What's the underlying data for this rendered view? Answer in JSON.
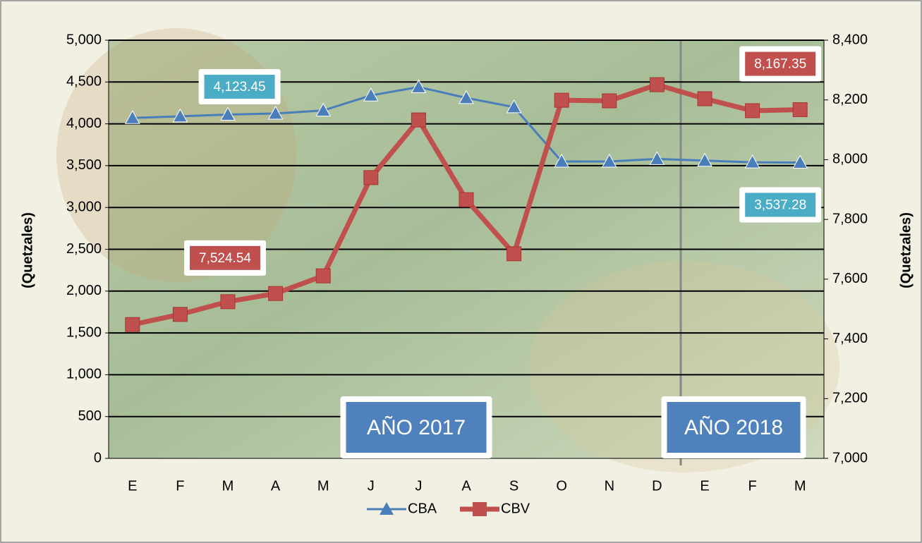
{
  "chart_data": {
    "type": "line",
    "y_label": "(Quetzales)",
    "y2_label": "(Quetzales)",
    "categories": [
      "E",
      "F",
      "M",
      "A",
      "M",
      "J",
      "J",
      "A",
      "S",
      "O",
      "N",
      "D",
      "E",
      "F",
      "M"
    ],
    "series": [
      {
        "name": "CBA",
        "color": "#4a7ebb",
        "marker": "triangle",
        "values": [
          4070,
          4090,
          4110,
          4123.45,
          4160,
          4340,
          4440,
          4310,
          4200,
          3550,
          3550,
          3580,
          3560,
          3540,
          3537.28
        ],
        "value_labels": [
          null,
          null,
          null,
          "4,123.45",
          null,
          null,
          null,
          null,
          null,
          null,
          null,
          null,
          null,
          null,
          "3,537.28"
        ]
      },
      {
        "name": "CBV",
        "color": "#c0504d",
        "marker": "square",
        "axis": "y2",
        "values": [
          7448,
          7482,
          7524.54,
          7552,
          7611,
          7940,
          8133,
          7866,
          7685,
          8199,
          8197,
          8251,
          8204,
          8164,
          8167.35
        ],
        "value_labels": [
          null,
          null,
          "7,524.54",
          null,
          null,
          null,
          null,
          null,
          null,
          null,
          null,
          null,
          null,
          null,
          "8,167.35"
        ]
      }
    ],
    "annotations": [
      "AÑO 2017",
      "AÑO 2018"
    ],
    "ylim": [
      0,
      5000
    ],
    "yticks": [
      0,
      500,
      {
        "value": 1000,
        "label": "1,000"
      },
      {
        "value": 1500,
        "label": "1,500"
      },
      {
        "value": 2000,
        "label": "2,000"
      },
      {
        "value": 2500,
        "label": "2,500"
      },
      {
        "value": 3000,
        "label": "3,000"
      },
      {
        "value": 3500,
        "label": "3,500"
      },
      {
        "value": 4000,
        "label": "4,000"
      },
      {
        "value": 4500,
        "label": "4,500"
      },
      {
        "value": 5000,
        "label": "5,000"
      }
    ],
    "y2lim": [
      7000,
      8400
    ],
    "y2ticks": [
      {
        "value": 7000,
        "label": "7,000"
      },
      {
        "value": 7200,
        "label": "7,200"
      },
      {
        "value": 7400,
        "label": "7,400"
      },
      {
        "value": 7600,
        "label": "7,600"
      },
      {
        "value": 7800,
        "label": "7,800"
      },
      {
        "value": 8000,
        "label": "8,000"
      },
      {
        "value": 8200,
        "label": "8,200"
      },
      {
        "value": 8400,
        "label": "8,400"
      }
    ],
    "grid": true,
    "legend": "bottom"
  }
}
